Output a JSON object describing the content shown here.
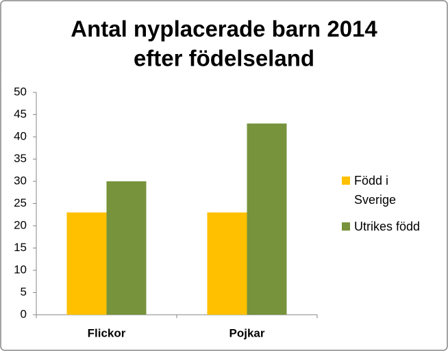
{
  "chart_data": {
    "type": "bar",
    "title": [
      "Antal nyplacerade barn 2014",
      "efter födelseland"
    ],
    "categories": [
      "Flickor",
      "Pojkar"
    ],
    "series": [
      {
        "name": "Född i Sverige",
        "color": "#FFC000",
        "values": [
          23,
          23
        ]
      },
      {
        "name": "Utrikes född",
        "color": "#77933C",
        "values": [
          30,
          43
        ]
      }
    ],
    "ylim": [
      0,
      50
    ],
    "yticks": [
      0,
      5,
      10,
      15,
      20,
      25,
      30,
      35,
      40,
      45,
      50
    ],
    "grid": false,
    "legend": "right"
  }
}
